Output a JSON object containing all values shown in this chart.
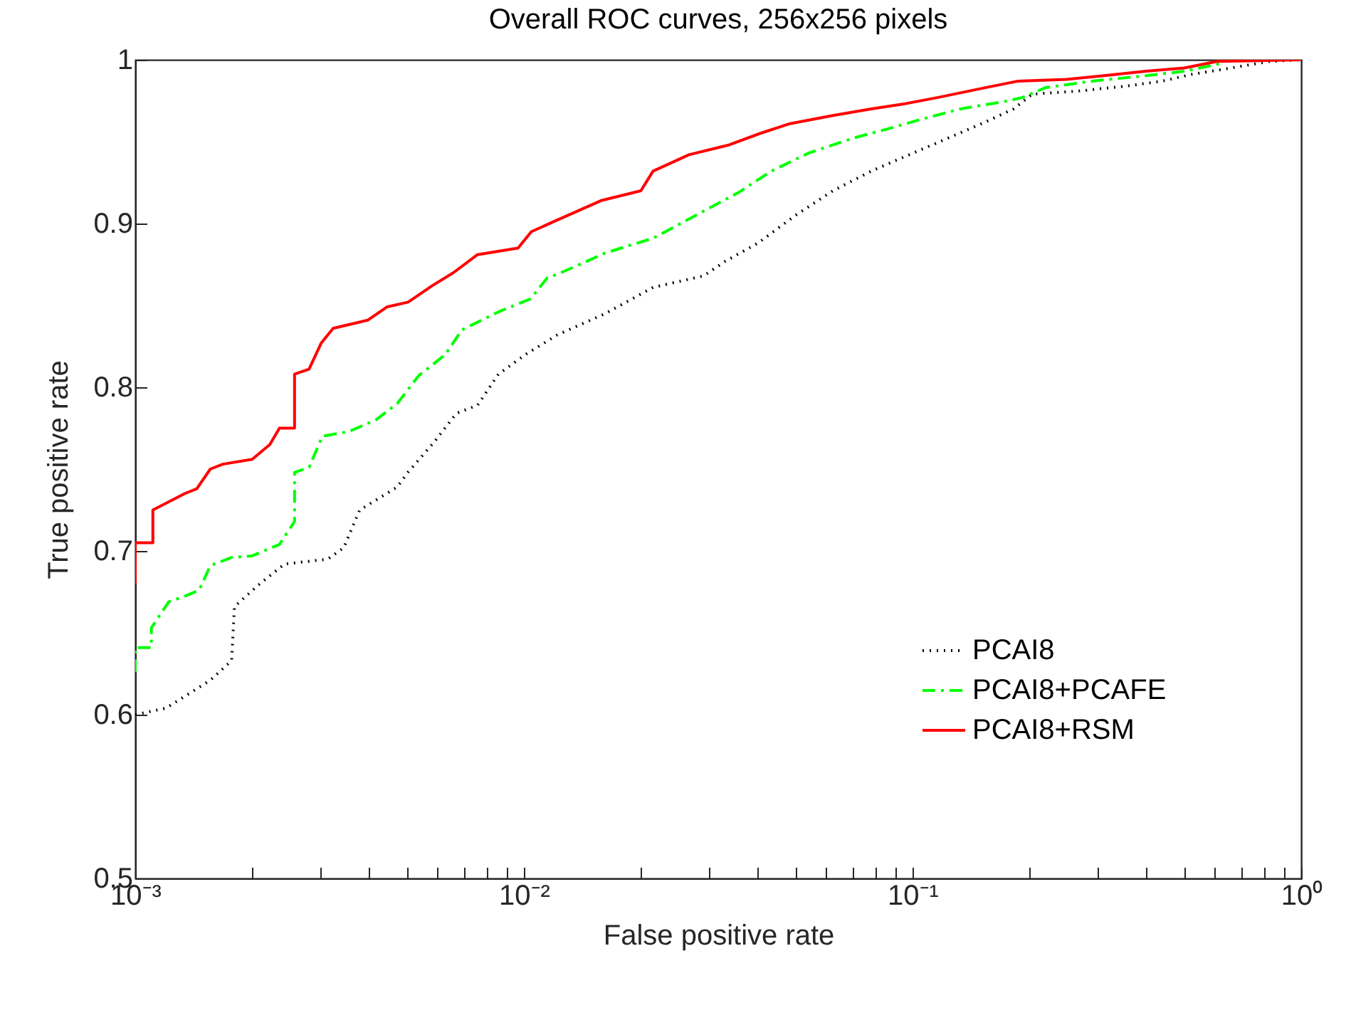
{
  "chart_data": {
    "type": "line",
    "title": "Overall ROC curves, 256x256 pixels",
    "xlabel": "False positive rate",
    "ylabel": "True positive rate",
    "log": "x",
    "legend": "bottom right",
    "xlim": [
      0.001,
      1
    ],
    "ylim": [
      0.5,
      1
    ],
    "xticks": [
      {
        "value": 0.001,
        "label": "10⁻³"
      },
      {
        "value": 0.002,
        "label": null
      },
      {
        "value": 0.003,
        "label": null
      },
      {
        "value": 0.004,
        "label": null
      },
      {
        "value": 0.005,
        "label": null
      },
      {
        "value": 0.006,
        "label": null
      },
      {
        "value": 0.007,
        "label": null
      },
      {
        "value": 0.008,
        "label": null
      },
      {
        "value": 0.009,
        "label": null
      },
      {
        "value": 0.01,
        "label": "10⁻²"
      },
      {
        "value": 0.02,
        "label": null
      },
      {
        "value": 0.03,
        "label": null
      },
      {
        "value": 0.04,
        "label": null
      },
      {
        "value": 0.05,
        "label": null
      },
      {
        "value": 0.06,
        "label": null
      },
      {
        "value": 0.07,
        "label": null
      },
      {
        "value": 0.08,
        "label": null
      },
      {
        "value": 0.09,
        "label": null
      },
      {
        "value": 0.1,
        "label": "10⁻¹"
      },
      {
        "value": 0.2,
        "label": null
      },
      {
        "value": 0.3,
        "label": null
      },
      {
        "value": 0.4,
        "label": null
      },
      {
        "value": 0.5,
        "label": null
      },
      {
        "value": 0.6,
        "label": null
      },
      {
        "value": 0.7,
        "label": null
      },
      {
        "value": 0.8,
        "label": null
      },
      {
        "value": 0.9,
        "label": null
      },
      {
        "value": 1,
        "label": "10⁰"
      }
    ],
    "yticks": [
      0.5,
      0.6,
      0.7,
      0.8,
      0.9,
      1
    ],
    "series": [
      {
        "name": "PCAI8",
        "color": "#000000",
        "line_style": "dotted",
        "x": [
          0.001,
          0.0012,
          0.00156,
          0.00177,
          0.0018,
          0.00207,
          0.00242,
          0.00313,
          0.00344,
          0.00378,
          0.00472,
          0.00503,
          0.0059,
          0.0067,
          0.0076,
          0.0086,
          0.0101,
          0.0122,
          0.0162,
          0.0215,
          0.029,
          0.033,
          0.04,
          0.05,
          0.0624,
          0.0783,
          0.098,
          0.123,
          0.154,
          0.182,
          0.203,
          0.27,
          0.356,
          0.44,
          0.52,
          0.66,
          0.83,
          1
        ],
        "values": [
          0.6,
          0.604,
          0.621,
          0.633,
          0.666,
          0.679,
          0.692,
          0.695,
          0.702,
          0.725,
          0.739,
          0.748,
          0.767,
          0.784,
          0.789,
          0.808,
          0.82,
          0.832,
          0.845,
          0.861,
          0.868,
          0.877,
          0.888,
          0.905,
          0.92,
          0.932,
          0.942,
          0.952,
          0.962,
          0.97,
          0.979,
          0.981,
          0.984,
          0.987,
          0.991,
          0.995,
          0.999,
          1
        ]
      },
      {
        "name": "PCAI8+PCAFE",
        "color": "#00ff00",
        "line_style": "dashed",
        "x": [
          0.001,
          0.001,
          0.0011,
          0.0011,
          0.00122,
          0.00133,
          0.00146,
          0.00156,
          0.00177,
          0.002,
          0.00235,
          0.00257,
          0.00257,
          0.0028,
          0.00303,
          0.00355,
          0.00416,
          0.00472,
          0.00536,
          0.00628,
          0.00692,
          0.0086,
          0.0104,
          0.0115,
          0.0122,
          0.0162,
          0.0215,
          0.0277,
          0.0357,
          0.0433,
          0.054,
          0.07,
          0.087,
          0.103,
          0.133,
          0.177,
          0.192,
          0.22,
          0.29,
          0.39,
          0.5,
          0.63
        ],
        "values": [
          0.626,
          0.641,
          0.641,
          0.653,
          0.669,
          0.672,
          0.676,
          0.691,
          0.696,
          0.697,
          0.704,
          0.718,
          0.748,
          0.751,
          0.77,
          0.773,
          0.78,
          0.79,
          0.807,
          0.82,
          0.835,
          0.846,
          0.854,
          0.867,
          0.869,
          0.882,
          0.891,
          0.905,
          0.919,
          0.932,
          0.943,
          0.952,
          0.958,
          0.963,
          0.97,
          0.975,
          0.977,
          0.983,
          0.987,
          0.99,
          0.993,
          0.998
        ]
      },
      {
        "name": "PCAI8+RSM",
        "color": "#ff0000",
        "line_style": "solid",
        "x": [
          0.001,
          0.001,
          0.00111,
          0.00111,
          0.00134,
          0.00144,
          0.00156,
          0.00168,
          0.002,
          0.00222,
          0.00235,
          0.00257,
          0.00257,
          0.0028,
          0.00301,
          0.00323,
          0.00397,
          0.00444,
          0.00504,
          0.00581,
          0.00659,
          0.0076,
          0.00966,
          0.01045,
          0.0119,
          0.0158,
          0.02,
          0.0215,
          0.0266,
          0.0337,
          0.0405,
          0.0484,
          0.0624,
          0.0783,
          0.095,
          0.1164,
          0.154,
          0.187,
          0.249,
          0.302,
          0.399,
          0.5,
          0.608,
          1
        ],
        "values": [
          0.68,
          0.705,
          0.705,
          0.725,
          0.735,
          0.738,
          0.75,
          0.753,
          0.756,
          0.765,
          0.775,
          0.775,
          0.808,
          0.811,
          0.827,
          0.836,
          0.841,
          0.849,
          0.852,
          0.862,
          0.87,
          0.881,
          0.885,
          0.895,
          0.901,
          0.914,
          0.92,
          0.932,
          0.942,
          0.948,
          0.955,
          0.961,
          0.966,
          0.97,
          0.973,
          0.977,
          0.983,
          0.987,
          0.988,
          0.99,
          0.993,
          0.995,
          0.999,
          1
        ]
      }
    ]
  }
}
